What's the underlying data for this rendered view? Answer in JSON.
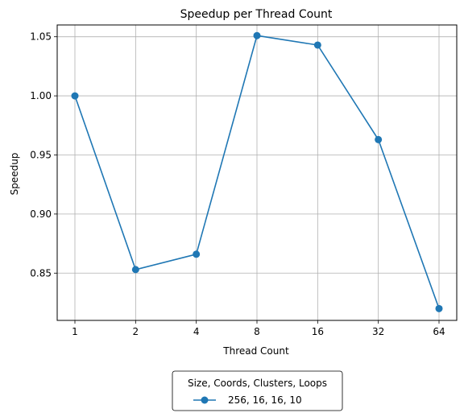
{
  "chart_data": {
    "type": "line",
    "title": "Speedup per Thread Count",
    "xlabel": "Thread Count",
    "ylabel": "Speedup",
    "categories": [
      "1",
      "2",
      "4",
      "8",
      "16",
      "32",
      "64"
    ],
    "series": [
      {
        "name": "256, 16, 16, 10",
        "values": [
          1.0,
          0.853,
          0.866,
          1.051,
          1.043,
          0.963,
          0.82
        ],
        "color": "#1f77b4",
        "marker": "circle"
      }
    ],
    "ylim": [
      0.81,
      1.06
    ],
    "yticks": [
      0.85,
      0.9,
      0.95,
      1.0,
      1.05
    ],
    "ytick_labels": [
      "0.85",
      "0.90",
      "0.95",
      "1.00",
      "1.05"
    ],
    "grid": true,
    "legend": {
      "title": "Size, Coords, Clusters, Loops",
      "placement": "bottom-center, outside plot"
    }
  }
}
